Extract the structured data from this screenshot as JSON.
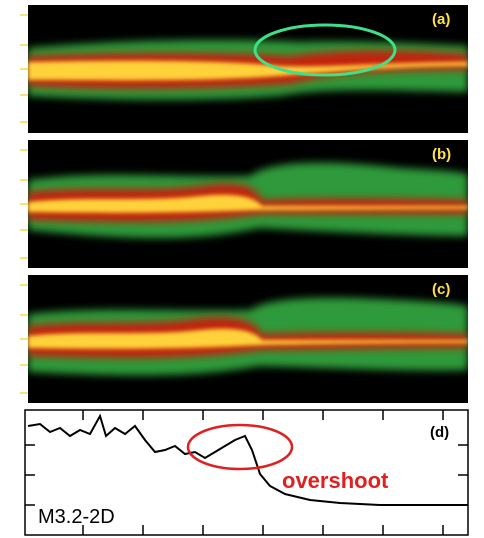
{
  "panels": [
    {
      "label": "(a)"
    },
    {
      "label": "(b)"
    },
    {
      "label": "(c)"
    },
    {
      "label": "(d)"
    }
  ],
  "annotations": {
    "highlight": "overshoot",
    "model": "M3.2-2D"
  }
}
